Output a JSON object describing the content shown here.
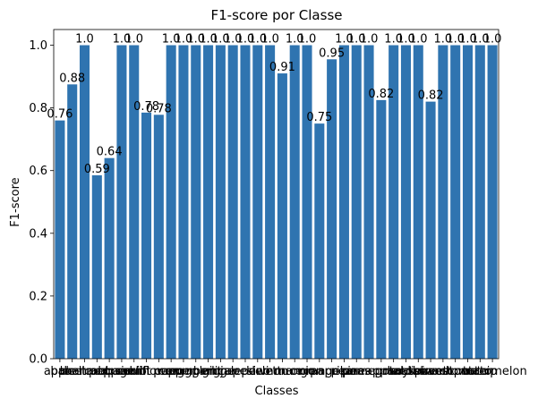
{
  "chart_data": {
    "type": "bar",
    "title": "F1-score por Classe",
    "xlabel": "Classes",
    "ylabel": "F1-score",
    "ylim": [
      0,
      1.05
    ],
    "yticks": [
      "0.0",
      "0.2",
      "0.4",
      "0.6",
      "0.8",
      "1.0"
    ],
    "grid": false,
    "categories": [
      "apple",
      "banana",
      "beetroot",
      "bell pepper",
      "cabbage",
      "capsicum",
      "carrot",
      "cauliflower",
      "chilli pepper",
      "corn",
      "cucumber",
      "eggplant",
      "garlic",
      "ginger",
      "grapes",
      "jalepeno",
      "kiwi",
      "lemon",
      "lettuce",
      "mango",
      "onion",
      "orange",
      "paprika",
      "pear",
      "peas",
      "pineapple",
      "pomegranate",
      "potato",
      "raddish",
      "soy beans",
      "spinach",
      "sweetcorn",
      "sweetpotato",
      "tomato",
      "turnip",
      "watermelon"
    ],
    "values": [
      0.76,
      0.875,
      1.0,
      0.585,
      0.64,
      1.0,
      1.0,
      0.785,
      0.778,
      1.0,
      1.0,
      1.0,
      1.0,
      1.0,
      1.0,
      1.0,
      1.0,
      1.0,
      0.91,
      1.0,
      1.0,
      0.75,
      0.955,
      1.0,
      1.0,
      1.0,
      0.825,
      1.0,
      1.0,
      1.0,
      0.82,
      1.0,
      1.0,
      1.0,
      1.0,
      1.0
    ],
    "data_labels": [
      "0.76",
      "0.88",
      "1.0",
      "0.59",
      "0.64",
      "1.0",
      "1.0",
      "0.78",
      "0.78",
      "1.0",
      "1.0",
      "1.0",
      "1.0",
      "1.0",
      "1.0",
      "1.0",
      "1.0",
      "1.0",
      "0.91",
      "1.0",
      "1.0",
      "0.75",
      "0.95",
      "1.0",
      "1.0",
      "1.0",
      "0.82",
      "1.0",
      "1.0",
      "1.0",
      "0.82",
      "1.0",
      "1.0",
      "1.0",
      "1.0",
      "1.0"
    ],
    "bar_color": "#2f74b0"
  }
}
